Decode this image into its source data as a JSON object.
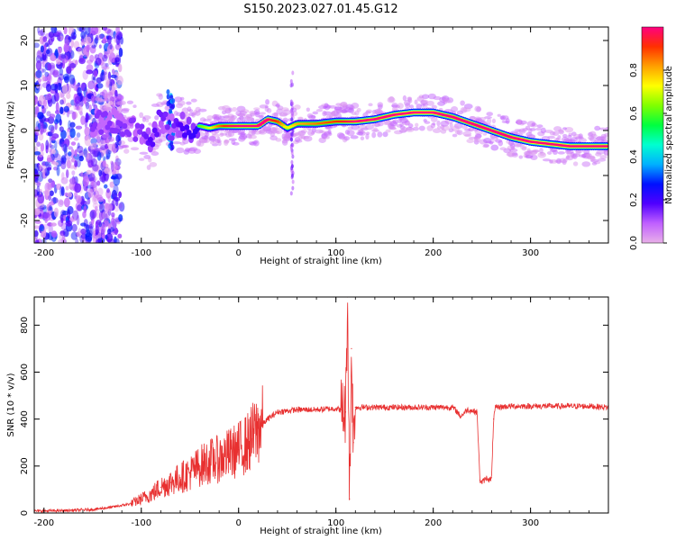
{
  "title": "S150.2023.027.01.45.G12",
  "chart_data": [
    {
      "type": "heatmap",
      "xlabel": "Height of straight line (km)",
      "ylabel": "Frequency (Hz)",
      "xlim": [
        -210,
        380
      ],
      "ylim": [
        -25,
        23
      ],
      "xticks": [
        -200,
        -100,
        0,
        100,
        200,
        300
      ],
      "yticks": [
        -20,
        -10,
        0,
        10,
        20
      ],
      "colorbar": {
        "label": "Normalized spectral amplitude",
        "range": [
          0.0,
          1.0
        ],
        "ticks": [
          "0.0",
          "0.2",
          "0.4",
          "0.6",
          "0.8"
        ],
        "colormap": [
          "#e8b0e8",
          "#c060ff",
          "#5000ff",
          "#0010ff",
          "#00b0ff",
          "#00ffd0",
          "#00ff40",
          "#80ff00",
          "#ffff00",
          "#ffa000",
          "#ff3000",
          "#ff0080"
        ]
      },
      "ridge": {
        "x": [
          -150,
          -130,
          -110,
          -100,
          -90,
          -80,
          -70,
          -60,
          -50,
          -40,
          -30,
          -20,
          -10,
          0,
          20,
          30,
          40,
          50,
          60,
          80,
          100,
          120,
          140,
          160,
          180,
          200,
          210,
          220,
          240,
          260,
          280,
          300,
          320,
          340,
          380
        ],
        "y": [
          1.5,
          2.5,
          0.5,
          -1.0,
          -3.0,
          3.0,
          0.5,
          1.5,
          0.5,
          1.0,
          0.5,
          1.0,
          1.0,
          1.0,
          1.0,
          2.5,
          2.0,
          0.5,
          1.5,
          1.5,
          2.0,
          2.0,
          2.5,
          3.5,
          4.0,
          4.0,
          3.5,
          3.0,
          1.5,
          0.0,
          -1.5,
          -2.5,
          -3.0,
          -3.5,
          -3.5
        ],
        "amplitude": [
          0.3,
          0.3,
          0.3,
          0.3,
          0.4,
          0.35,
          0.3,
          0.4,
          0.45,
          0.5,
          0.6,
          0.75,
          0.85,
          0.9,
          0.9,
          0.9,
          0.8,
          0.6,
          0.7,
          0.75,
          0.8,
          0.9,
          0.9,
          0.95,
          0.95,
          0.95,
          0.9,
          0.9,
          0.9,
          0.9,
          0.9,
          0.95,
          0.95,
          0.95,
          0.95
        ]
      }
    },
    {
      "type": "line",
      "xlabel": "Height of straight line (km)",
      "ylabel": "SNR (10 * v/v)",
      "xlim": [
        -210,
        380
      ],
      "ylim": [
        0,
        920
      ],
      "xticks": [
        -200,
        -100,
        0,
        100,
        200,
        300
      ],
      "yticks": [
        0,
        200,
        400,
        600,
        800
      ],
      "series": [
        {
          "color": "#e83030",
          "x": [
            -210,
            -180,
            -150,
            -130,
            -110,
            -100,
            -90,
            -80,
            -70,
            -60,
            -50,
            -40,
            -30,
            -20,
            -10,
            0,
            10,
            20,
            30,
            40,
            60,
            80,
            100,
            105,
            110,
            112,
            114,
            116,
            118,
            120,
            140,
            160,
            180,
            200,
            220,
            225,
            228,
            235,
            245,
            248,
            250,
            255,
            258,
            260,
            262,
            264,
            280,
            300,
            320,
            340,
            360,
            380
          ],
          "y": [
            8,
            10,
            15,
            25,
            40,
            60,
            80,
            110,
            130,
            150,
            170,
            200,
            220,
            230,
            250,
            270,
            300,
            360,
            400,
            430,
            440,
            440,
            445,
            440,
            430,
            920,
            60,
            700,
            300,
            450,
            450,
            450,
            450,
            450,
            450,
            430,
            410,
            440,
            430,
            140,
            130,
            150,
            140,
            150,
            400,
            450,
            455,
            455,
            455,
            455,
            455,
            450
          ]
        }
      ]
    }
  ]
}
